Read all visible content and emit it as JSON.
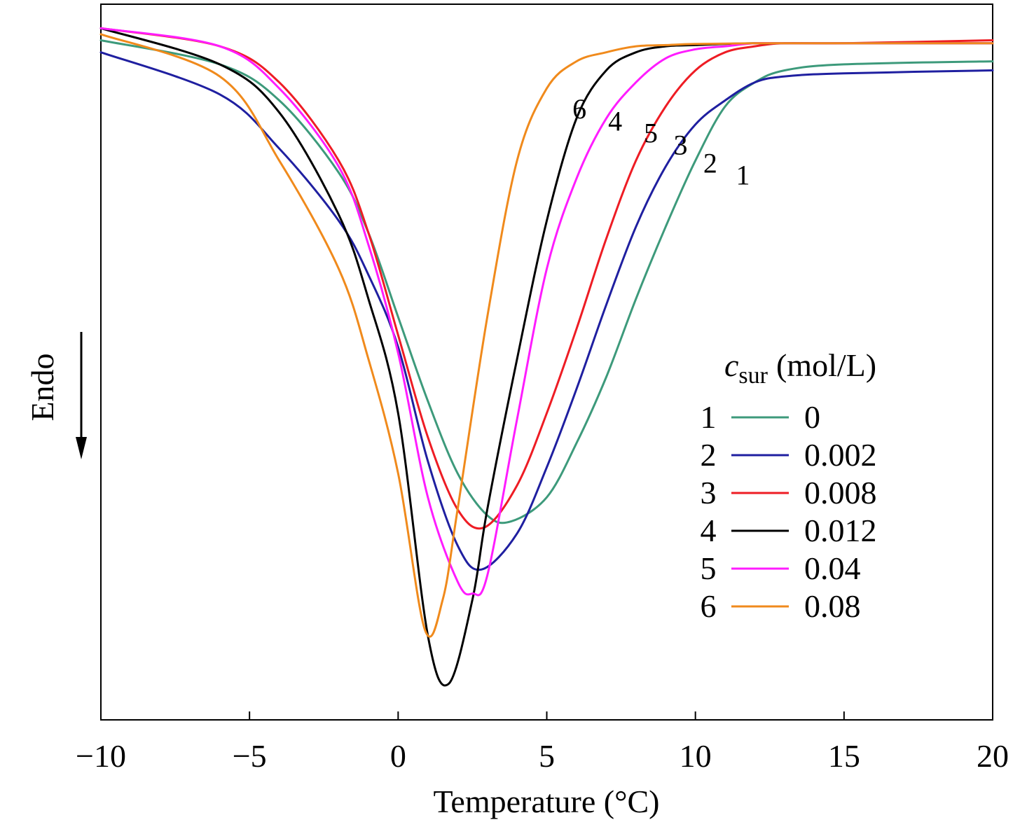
{
  "chart_data": {
    "type": "line",
    "xlabel": "Temperature (°C)",
    "ylabel": "Endo",
    "xlim": [
      -10,
      20
    ],
    "y_units": "relative heat flow (arbitrary, endothermic downward)",
    "xticks": [
      -10,
      -5,
      0,
      5,
      10,
      15,
      20
    ],
    "xtick_labels": [
      "−10",
      "−5",
      "0",
      "5",
      "10",
      "15",
      "20"
    ],
    "grid": false,
    "legend": {
      "title_main": "c",
      "title_sub": "sur",
      "title_unit": "(mol/L)",
      "placement": "right"
    },
    "series": [
      {
        "id": "1",
        "name": "0",
        "color": "#3d9a7b",
        "x": [
          -10,
          -6,
          -4,
          -2,
          -1,
          0,
          1,
          2,
          3,
          3.8,
          5,
          6,
          7,
          8,
          9,
          10,
          11,
          12,
          13,
          15,
          20
        ],
        "y": [
          8.6,
          8.2,
          7.6,
          6.4,
          5.4,
          4.0,
          2.6,
          1.4,
          0.7,
          0.6,
          1.0,
          1.9,
          3.0,
          4.3,
          5.5,
          6.6,
          7.5,
          7.9,
          8.1,
          8.2,
          8.25
        ]
      },
      {
        "id": "2",
        "name": "0.002",
        "color": "#1f1fa0",
        "x": [
          -10,
          -6,
          -4,
          -2,
          -1,
          0,
          1,
          2,
          2.8,
          4,
          5,
          6,
          7,
          8,
          9,
          10,
          11,
          12,
          13,
          15,
          20
        ],
        "y": [
          8.4,
          7.7,
          6.8,
          5.6,
          4.7,
          3.5,
          1.6,
          0.2,
          -0.2,
          0.4,
          1.5,
          2.8,
          4.2,
          5.5,
          6.5,
          7.2,
          7.6,
          7.9,
          8.0,
          8.05,
          8.1
        ]
      },
      {
        "id": "3",
        "name": "0.008",
        "color": "#ee1c24",
        "x": [
          -10,
          -6,
          -4,
          -2,
          -1,
          0,
          1,
          2,
          2.9,
          4,
          5,
          6,
          7,
          8,
          9,
          10,
          11,
          12,
          13,
          15,
          20
        ],
        "y": [
          8.8,
          8.5,
          7.9,
          6.6,
          5.4,
          3.7,
          2.0,
          0.8,
          0.5,
          1.2,
          2.4,
          3.8,
          5.3,
          6.6,
          7.5,
          8.1,
          8.4,
          8.5,
          8.55,
          8.55,
          8.6
        ]
      },
      {
        "id": "4",
        "name": "0.012",
        "color": "#000000",
        "x": [
          -10,
          -6,
          -4,
          -2,
          -1,
          0,
          1,
          1.7,
          2.5,
          3,
          4,
          5,
          6,
          7,
          8,
          9,
          10,
          11,
          12,
          13,
          15,
          20
        ],
        "y": [
          8.8,
          8.2,
          7.4,
          5.7,
          4.3,
          2.4,
          -1.3,
          -2.1,
          -0.7,
          0.8,
          3.3,
          5.6,
          7.3,
          8.1,
          8.4,
          8.5,
          8.52,
          8.54,
          8.55,
          8.55,
          8.55,
          8.55
        ]
      },
      {
        "id": "5",
        "name": "0.04",
        "color": "#ff1cff",
        "x": [
          -10,
          -6,
          -4,
          -2,
          -1,
          0,
          1,
          2,
          2.5,
          3,
          4,
          5,
          6,
          7,
          8,
          9,
          10,
          11,
          12,
          13,
          15,
          20
        ],
        "y": [
          8.8,
          8.5,
          7.8,
          6.5,
          5.2,
          3.4,
          1.0,
          -0.4,
          -0.6,
          -0.3,
          2.3,
          4.8,
          6.3,
          7.3,
          7.9,
          8.3,
          8.45,
          8.5,
          8.55,
          8.55,
          8.55,
          8.55
        ]
      },
      {
        "id": "6",
        "name": "0.08",
        "color": "#f08a1c",
        "x": [
          -10,
          -6,
          -4,
          -2,
          -1,
          0,
          0.9,
          1.5,
          2,
          3,
          4,
          5,
          6,
          7,
          8,
          9,
          10,
          12,
          15,
          20
        ],
        "y": [
          8.7,
          8.0,
          6.6,
          4.8,
          3.3,
          1.4,
          -1.2,
          -0.7,
          0.8,
          4.0,
          6.6,
          7.8,
          8.25,
          8.4,
          8.5,
          8.52,
          8.54,
          8.55,
          8.55,
          8.55
        ]
      }
    ],
    "curve_labels": [
      {
        "text": "6",
        "x": 6.1,
        "y": 7.3
      },
      {
        "text": "4",
        "x": 7.3,
        "y": 7.1
      },
      {
        "text": "5",
        "x": 8.5,
        "y": 6.9
      },
      {
        "text": "3",
        "x": 9.5,
        "y": 6.7
      },
      {
        "text": "2",
        "x": 10.5,
        "y": 6.4
      },
      {
        "text": "1",
        "x": 11.6,
        "y": 6.2
      }
    ]
  }
}
